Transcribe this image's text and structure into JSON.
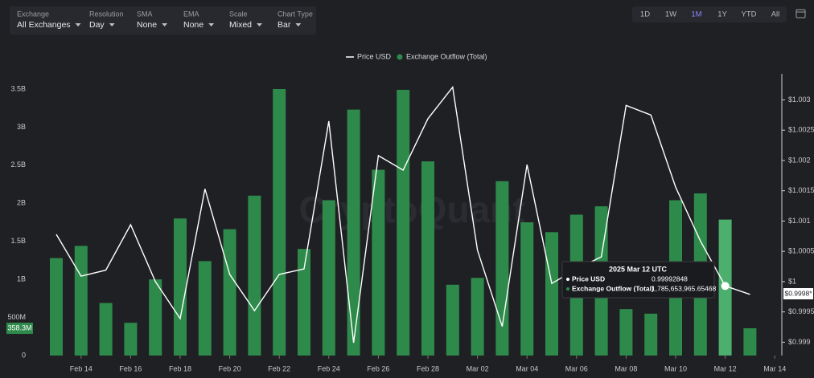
{
  "toolbar": {
    "controls": [
      {
        "label": "Exchange",
        "value": "All Exchanges"
      },
      {
        "label": "Resolution",
        "value": "Day"
      },
      {
        "label": "SMA",
        "value": "None"
      },
      {
        "label": "EMA",
        "value": "None"
      },
      {
        "label": "Scale",
        "value": "Mixed"
      },
      {
        "label": "Chart Type",
        "value": "Bar"
      }
    ],
    "ranges": [
      "1D",
      "1W",
      "1M",
      "1Y",
      "YTD",
      "All"
    ],
    "active_range": 2
  },
  "chart_data": {
    "type": "bar",
    "watermark": "CryptoQuant",
    "categories": [
      null,
      "Feb 14",
      null,
      "Feb 16",
      null,
      "Feb 18",
      null,
      "Feb 20",
      null,
      "Feb 22",
      null,
      "Feb 24",
      null,
      "Feb 26",
      null,
      "Feb 28",
      null,
      "Mar 02",
      null,
      "Mar 04",
      null,
      "Mar 06",
      null,
      "Mar 08",
      null,
      "Mar 10",
      null,
      "Mar 12",
      null,
      "Mar 14"
    ],
    "series": [
      {
        "name": "Price USD",
        "type": "line",
        "axis": "y2",
        "color": "#ffffff",
        "values": [
          1.00078,
          1.00009,
          1.00019,
          1.00094,
          1.0,
          0.99939,
          1.00153,
          1.00012,
          0.99952,
          1.00012,
          1.00021,
          1.00265,
          0.99899,
          1.00208,
          1.00184,
          1.00269,
          1.00321,
          1.00052,
          0.99926,
          1.00193,
          0.99997,
          1.00021,
          1.00041,
          1.00291,
          1.00275,
          1.00156,
          1.00067,
          0.99992848,
          0.99979,
          null
        ]
      },
      {
        "name": "Exchange Outflow (Total)",
        "type": "bar",
        "axis": "y",
        "color": "#2e8a4b",
        "values": [
          1280000000,
          1440000000,
          690000000,
          430000000,
          1000000000,
          1800000000,
          1240000000,
          1660000000,
          2100000000,
          3500000000,
          1400000000,
          2040000000,
          3230000000,
          2440000000,
          3490000000,
          2550000000,
          930000000,
          1020000000,
          2290000000,
          1750000000,
          1620000000,
          1850000000,
          1960000000,
          610000000,
          550000000,
          2040000000,
          2130000000,
          1785653965.65468,
          358300000,
          null
        ]
      }
    ],
    "highlight_index": 27,
    "highlight_color": "#4caf6e",
    "ylim": [
      0,
      3700000000
    ],
    "yticks": [
      0,
      {
        "value": 500000000,
        "label": "500M"
      },
      {
        "value": 1000000000,
        "label": "1B"
      },
      {
        "value": 1500000000,
        "label": "1.5B"
      },
      {
        "value": 2000000000,
        "label": "2B"
      },
      {
        "value": 2500000000,
        "label": "2.5B"
      },
      {
        "value": 3000000000,
        "label": "3B"
      },
      {
        "value": 3500000000,
        "label": "3.5B"
      }
    ],
    "y2lim": [
      0.99878,
      1.00343
    ],
    "y2ticks": [
      {
        "value": 0.999,
        "label": "$0.999"
      },
      {
        "value": 0.9995,
        "label": "$0.9995"
      },
      {
        "value": 1,
        "label": "$1"
      },
      {
        "value": 1.0005,
        "label": "$1.0005"
      },
      {
        "value": 1.001,
        "label": "$1.001"
      },
      {
        "value": 1.0015,
        "label": "$1.0015"
      },
      {
        "value": 1.002,
        "label": "$1.002"
      },
      {
        "value": 1.0025,
        "label": "$1.0025"
      },
      {
        "value": 1.003,
        "label": "$1.003"
      }
    ],
    "grid": false,
    "last_value_labels": [
      {
        "value": 358300000,
        "label": "358.3M"
      },
      {
        "value": 0.9998,
        "label": "$0.9998*"
      }
    ],
    "tooltip": {
      "title": "2025 Mar 12 UTC",
      "rows": [
        {
          "name": "Price USD",
          "value": "0.99992848"
        },
        {
          "name": "Exchange Outflow (Total)",
          "value": "1,785,653,965.65468"
        }
      ]
    }
  }
}
